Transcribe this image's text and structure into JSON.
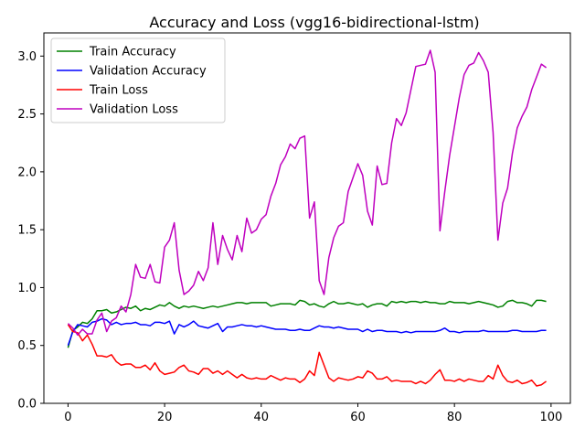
{
  "chart_data": {
    "type": "line",
    "title": "Accuracy and Loss (vgg16-bidirectional-lstm)",
    "xlabel": "",
    "ylabel": "",
    "xlim": [
      -5,
      104
    ],
    "ylim": [
      0.0,
      3.2
    ],
    "xticks": [
      0,
      20,
      40,
      60,
      80,
      100
    ],
    "yticks": [
      0.0,
      0.5,
      1.0,
      1.5,
      2.0,
      2.5,
      3.0
    ],
    "xtick_labels": [
      "0",
      "20",
      "40",
      "60",
      "80",
      "100"
    ],
    "ytick_labels": [
      "0.0",
      "0.5",
      "1.0",
      "1.5",
      "2.0",
      "2.5",
      "3.0"
    ],
    "grid": false,
    "legend_position": "top-left",
    "series": [
      {
        "name": "Train Accuracy",
        "color": "#008000",
        "values": [
          0.48,
          0.63,
          0.66,
          0.7,
          0.69,
          0.73,
          0.8,
          0.8,
          0.81,
          0.78,
          0.79,
          0.81,
          0.83,
          0.82,
          0.84,
          0.8,
          0.82,
          0.81,
          0.83,
          0.85,
          0.84,
          0.87,
          0.84,
          0.82,
          0.84,
          0.83,
          0.84,
          0.83,
          0.82,
          0.83,
          0.84,
          0.83,
          0.84,
          0.85,
          0.86,
          0.87,
          0.87,
          0.86,
          0.87,
          0.87,
          0.87,
          0.87,
          0.84,
          0.85,
          0.86,
          0.86,
          0.86,
          0.85,
          0.89,
          0.88,
          0.85,
          0.86,
          0.84,
          0.83,
          0.86,
          0.88,
          0.86,
          0.86,
          0.87,
          0.86,
          0.85,
          0.86,
          0.83,
          0.85,
          0.86,
          0.86,
          0.84,
          0.88,
          0.87,
          0.88,
          0.87,
          0.88,
          0.88,
          0.87,
          0.88,
          0.87,
          0.87,
          0.86,
          0.86,
          0.88,
          0.87,
          0.87,
          0.87,
          0.86,
          0.87,
          0.88,
          0.87,
          0.86,
          0.85,
          0.83,
          0.84,
          0.88,
          0.89,
          0.87,
          0.87,
          0.86,
          0.84,
          0.89,
          0.89,
          0.88
        ]
      },
      {
        "name": "Validation Accuracy",
        "color": "#0000ff",
        "values": [
          0.5,
          0.62,
          0.68,
          0.67,
          0.66,
          0.7,
          0.71,
          0.73,
          0.72,
          0.68,
          0.7,
          0.68,
          0.69,
          0.69,
          0.7,
          0.68,
          0.68,
          0.67,
          0.7,
          0.7,
          0.69,
          0.71,
          0.6,
          0.68,
          0.66,
          0.68,
          0.71,
          0.67,
          0.66,
          0.65,
          0.67,
          0.69,
          0.62,
          0.66,
          0.66,
          0.67,
          0.68,
          0.67,
          0.67,
          0.66,
          0.67,
          0.66,
          0.65,
          0.64,
          0.64,
          0.64,
          0.63,
          0.63,
          0.64,
          0.63,
          0.63,
          0.65,
          0.67,
          0.66,
          0.66,
          0.65,
          0.66,
          0.65,
          0.64,
          0.64,
          0.64,
          0.62,
          0.64,
          0.62,
          0.63,
          0.63,
          0.62,
          0.62,
          0.62,
          0.61,
          0.62,
          0.61,
          0.62,
          0.62,
          0.62,
          0.62,
          0.62,
          0.63,
          0.65,
          0.62,
          0.62,
          0.61,
          0.62,
          0.62,
          0.62,
          0.62,
          0.63,
          0.62,
          0.62,
          0.62,
          0.62,
          0.62,
          0.63,
          0.63,
          0.62,
          0.62,
          0.62,
          0.62,
          0.63,
          0.63
        ]
      },
      {
        "name": "Train Loss",
        "color": "#ff0000",
        "values": [
          0.68,
          0.62,
          0.61,
          0.54,
          0.59,
          0.51,
          0.41,
          0.41,
          0.4,
          0.42,
          0.36,
          0.33,
          0.34,
          0.34,
          0.31,
          0.31,
          0.33,
          0.29,
          0.35,
          0.28,
          0.25,
          0.26,
          0.27,
          0.31,
          0.33,
          0.28,
          0.27,
          0.25,
          0.3,
          0.3,
          0.26,
          0.28,
          0.25,
          0.28,
          0.25,
          0.22,
          0.25,
          0.22,
          0.21,
          0.22,
          0.21,
          0.21,
          0.24,
          0.22,
          0.2,
          0.22,
          0.21,
          0.21,
          0.18,
          0.21,
          0.28,
          0.24,
          0.44,
          0.33,
          0.22,
          0.19,
          0.22,
          0.21,
          0.2,
          0.21,
          0.23,
          0.22,
          0.28,
          0.26,
          0.21,
          0.21,
          0.23,
          0.19,
          0.2,
          0.19,
          0.19,
          0.19,
          0.17,
          0.19,
          0.17,
          0.2,
          0.25,
          0.29,
          0.2,
          0.2,
          0.19,
          0.21,
          0.19,
          0.21,
          0.2,
          0.19,
          0.19,
          0.24,
          0.21,
          0.33,
          0.24,
          0.19,
          0.18,
          0.2,
          0.17,
          0.18,
          0.2,
          0.15,
          0.16,
          0.19
        ]
      },
      {
        "name": "Validation Loss",
        "color": "#bf00bf",
        "values": [
          0.69,
          0.65,
          0.59,
          0.64,
          0.6,
          0.6,
          0.72,
          0.78,
          0.62,
          0.71,
          0.74,
          0.84,
          0.79,
          0.94,
          1.2,
          1.09,
          1.08,
          1.2,
          1.05,
          1.04,
          1.35,
          1.41,
          1.56,
          1.15,
          0.94,
          0.97,
          1.02,
          1.14,
          1.06,
          1.17,
          1.56,
          1.2,
          1.45,
          1.33,
          1.24,
          1.45,
          1.31,
          1.6,
          1.47,
          1.5,
          1.59,
          1.63,
          1.79,
          1.9,
          2.06,
          2.13,
          2.24,
          2.2,
          2.29,
          2.31,
          1.6,
          1.74,
          1.06,
          0.94,
          1.26,
          1.43,
          1.53,
          1.56,
          1.83,
          1.95,
          2.07,
          1.97,
          1.66,
          1.54,
          2.05,
          1.89,
          1.9,
          2.25,
          2.46,
          2.4,
          2.51,
          2.71,
          2.91,
          2.92,
          2.93,
          3.05,
          2.86,
          1.49,
          1.83,
          2.14,
          2.39,
          2.64,
          2.84,
          2.92,
          2.94,
          3.03,
          2.96,
          2.86,
          2.34,
          1.41,
          1.73,
          1.86,
          2.16,
          2.38,
          2.48,
          2.56,
          2.71,
          2.82,
          2.93,
          2.9
        ]
      }
    ]
  }
}
